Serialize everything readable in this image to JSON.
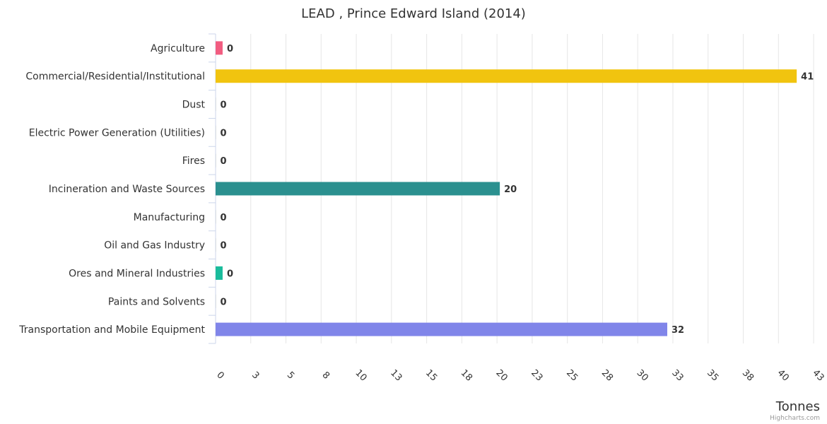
{
  "chart_data": {
    "type": "bar",
    "orientation": "horizontal",
    "title": "LEAD , Prince Edward Island (2014)",
    "categories": [
      "Agriculture",
      "Commercial/Residential/Institutional",
      "Dust",
      "Electric Power Generation (Utilities)",
      "Fires",
      "Incineration and Waste Sources",
      "Manufacturing",
      "Oil and Gas Industry",
      "Ores and Mineral Industries",
      "Paints and Solvents",
      "Transportation and Mobile Equipment"
    ],
    "values": [
      0.5,
      41.3,
      0.02,
      0.02,
      0.02,
      20.2,
      0.02,
      0.02,
      0.5,
      0.02,
      32.1
    ],
    "data_labels": [
      "0",
      "41",
      "0",
      "0",
      "0",
      "20",
      "0",
      "0",
      "0",
      "0",
      "32"
    ],
    "colors": [
      "#f15c80",
      "#f1c40f",
      "#bdc3c7",
      "#bdc3c7",
      "#bdc3c7",
      "#2b908f",
      "#bdc3c7",
      "#bdc3c7",
      "#1abc9c",
      "#bdc3c7",
      "#8085e9"
    ],
    "xlabel": "Tonnes",
    "xlim": [
      0,
      43
    ],
    "x_ticks": [
      0,
      2.5,
      5,
      7.5,
      10,
      12.5,
      15,
      17.5,
      20,
      22.5,
      25,
      27.5,
      30,
      32.5,
      35,
      37.5,
      40,
      42.5
    ],
    "x_tick_labels": [
      "0",
      "3",
      "5",
      "8",
      "10",
      "13",
      "15",
      "18",
      "20",
      "23",
      "25",
      "28",
      "30",
      "33",
      "35",
      "38",
      "40",
      "43"
    ],
    "grid": "vertical",
    "legend": "none",
    "credits": "Highcharts.com"
  }
}
